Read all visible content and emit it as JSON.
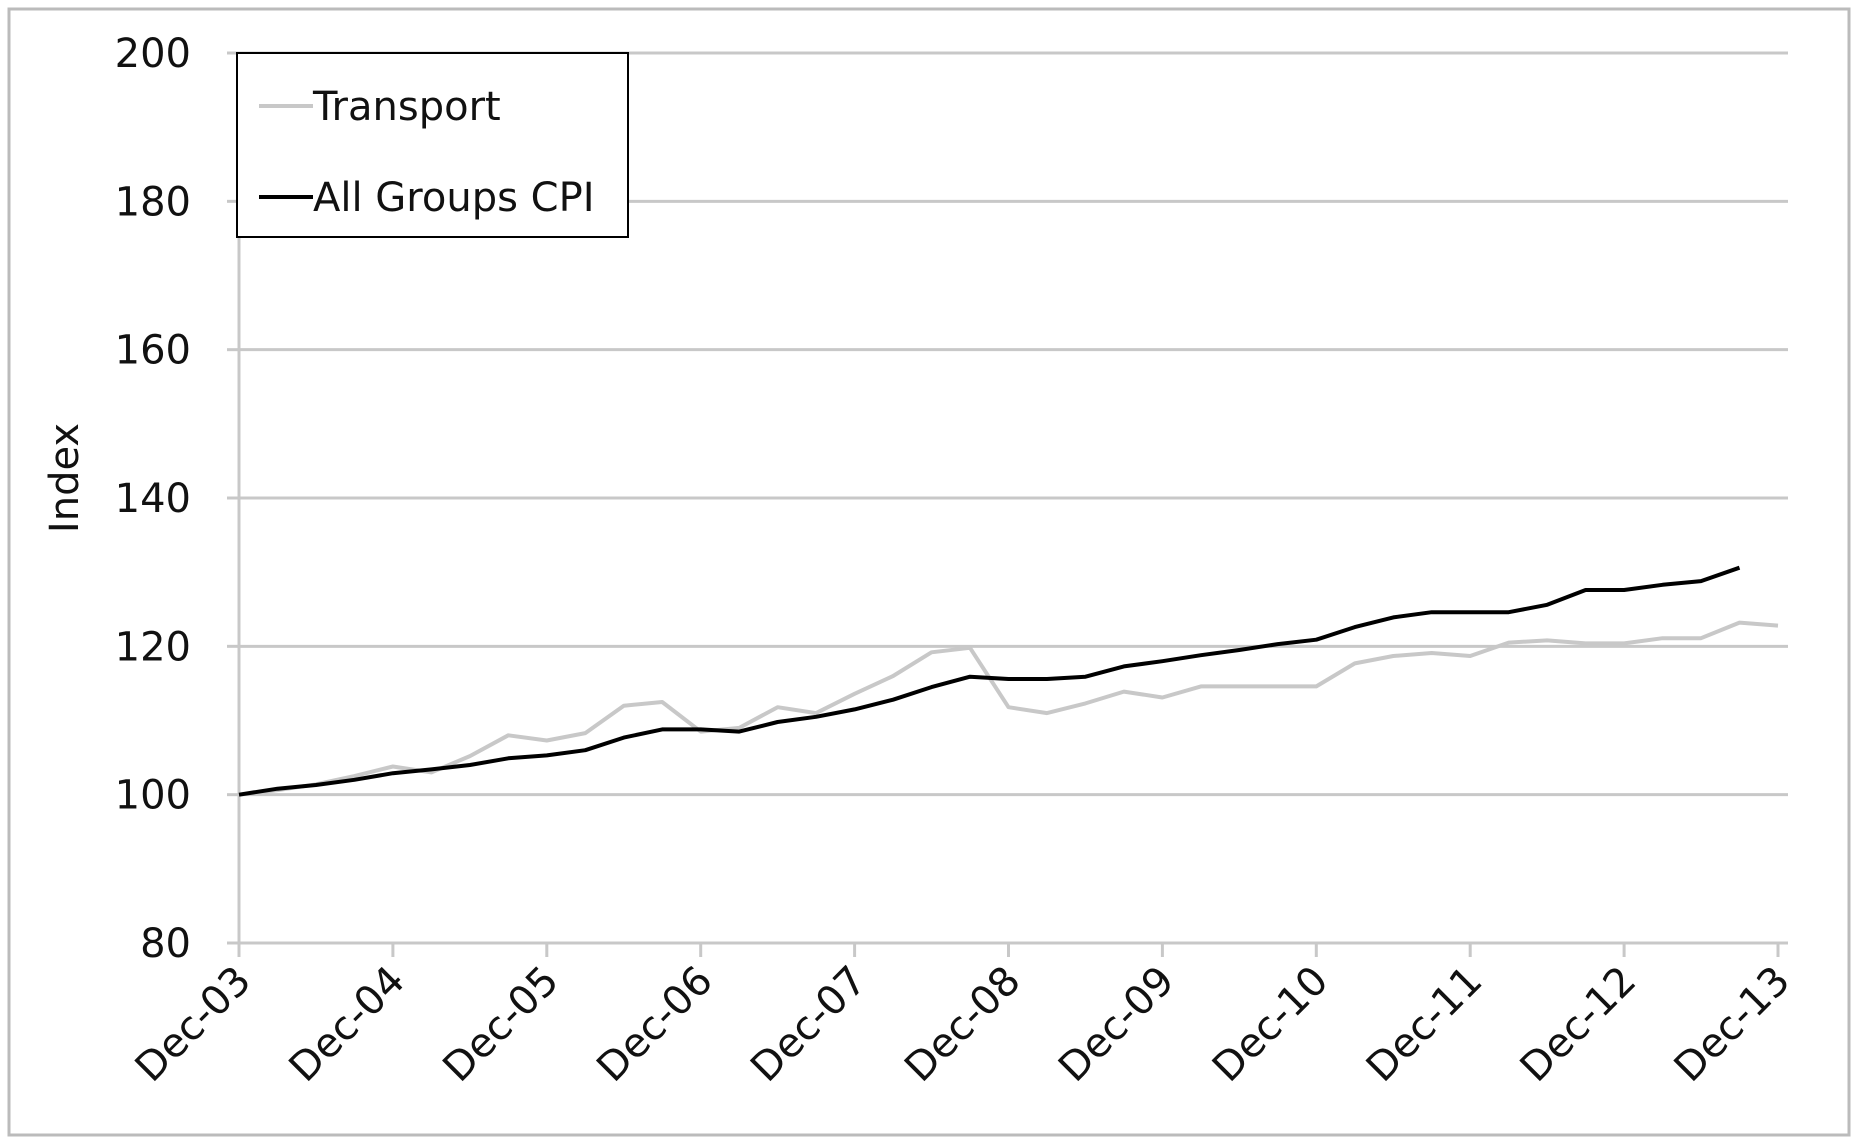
{
  "chart_data": {
    "type": "line",
    "ylabel": "Index",
    "categories": [
      "Dec-03",
      null,
      null,
      null,
      "Dec-04",
      null,
      null,
      null,
      "Dec-05",
      null,
      null,
      null,
      "Dec-06",
      null,
      null,
      null,
      "Dec-07",
      null,
      null,
      null,
      "Dec-08",
      null,
      null,
      null,
      "Dec-09",
      null,
      null,
      null,
      "Dec-10",
      null,
      null,
      null,
      "Dec-11",
      null,
      null,
      null,
      "Dec-12",
      null,
      null,
      null,
      "Dec-13"
    ],
    "series": [
      {
        "name": "Transport",
        "color": "#c8c8c8",
        "values": [
          100,
          100.6,
          101.4,
          102.5,
          103.8,
          103,
          105.2,
          108,
          107.3,
          108.3,
          112,
          112.5,
          108.5,
          109,
          111.8,
          111,
          113.6,
          116,
          119.2,
          119.8,
          111.8,
          111,
          112.3,
          113.9,
          113.1,
          114.6,
          114.6,
          114.6,
          114.6,
          117.7,
          118.7,
          119.1,
          118.7,
          120.5,
          120.8,
          120.4,
          120.4,
          121.1,
          121.1,
          123.2,
          122.8
        ]
      },
      {
        "name": "All Groups CPI",
        "color": "#000000",
        "values": [
          100,
          100.8,
          101.3,
          102,
          102.9,
          103.4,
          104,
          104.9,
          105.3,
          106,
          107.7,
          108.8,
          108.8,
          108.5,
          109.8,
          110.5,
          111.5,
          112.8,
          114.5,
          115.9,
          115.6,
          115.6,
          115.9,
          117.3,
          118,
          118.8,
          119.5,
          120.3,
          120.9,
          122.6,
          123.9,
          124.6,
          124.6,
          124.6,
          125.6,
          127.6,
          127.6,
          128.3,
          128.8,
          130.6,
          null
        ]
      }
    ],
    "ylim": [
      80,
      200
    ],
    "yticks": [
      80,
      100,
      120,
      140,
      160,
      180,
      200
    ],
    "grid": true,
    "legend": "top-left"
  }
}
